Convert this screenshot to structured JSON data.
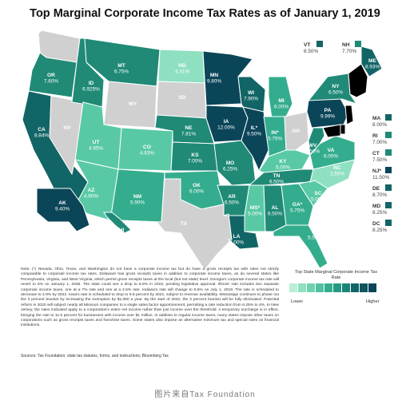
{
  "title": "Top Marginal Corporate Income Tax Rates as of January 1, 2019",
  "colors": {
    "no_tax": "#d0d0d0",
    "ramp": [
      "#8ee0c0",
      "#59c9a5",
      "#34ad8e",
      "#208a77",
      "#126566",
      "#0b4558"
    ]
  },
  "states": [
    {
      "id": "WA",
      "label": "",
      "rate": "",
      "tier": -1
    },
    {
      "id": "OR",
      "label": "OR",
      "rate": "7.60%",
      "tier": 3
    },
    {
      "id": "CA",
      "label": "CA",
      "rate": "8.84%",
      "tier": 4
    },
    {
      "id": "NV",
      "label": "NV",
      "rate": "",
      "tier": -1
    },
    {
      "id": "ID",
      "label": "ID",
      "rate": "6.925%",
      "tier": 3
    },
    {
      "id": "MT",
      "label": "MT",
      "rate": "6.75%",
      "tier": 3
    },
    {
      "id": "WY",
      "label": "WY",
      "rate": "",
      "tier": -1
    },
    {
      "id": "UT",
      "label": "UT",
      "rate": "4.95%",
      "tier": 1
    },
    {
      "id": "AZ",
      "label": "AZ",
      "rate": "4.90%",
      "tier": 1
    },
    {
      "id": "CO",
      "label": "CO",
      "rate": "4.63%",
      "tier": 1
    },
    {
      "id": "NM",
      "label": "NM",
      "rate": "5.90%",
      "tier": 2
    },
    {
      "id": "ND",
      "label": "ND",
      "rate": "4.31%",
      "tier": 0
    },
    {
      "id": "SD",
      "label": "SD",
      "rate": "",
      "tier": -1
    },
    {
      "id": "NE",
      "label": "NE",
      "rate": "7.81%",
      "tier": 3
    },
    {
      "id": "KS",
      "label": "KS",
      "rate": "7.00%",
      "tier": 3
    },
    {
      "id": "OK",
      "label": "OK",
      "rate": "6.00%",
      "tier": 2
    },
    {
      "id": "TX",
      "label": "TX",
      "rate": "",
      "tier": -1
    },
    {
      "id": "MN",
      "label": "MN",
      "rate": "9.80%",
      "tier": 5
    },
    {
      "id": "IA",
      "label": "IA",
      "rate": "12.00%",
      "tier": 5
    },
    {
      "id": "MO",
      "label": "MO",
      "rate": "6.25%",
      "tier": 3
    },
    {
      "id": "AR",
      "label": "AR",
      "rate": "6.50%",
      "tier": 3
    },
    {
      "id": "LA",
      "label": "LA",
      "rate": "8.00%",
      "tier": 4
    },
    {
      "id": "WI",
      "label": "WI",
      "rate": "7.90%",
      "tier": 4
    },
    {
      "id": "IL",
      "label": "IL*",
      "rate": "9.50%",
      "tier": 5
    },
    {
      "id": "MS",
      "label": "MS*",
      "rate": "5.00%",
      "tier": 1
    },
    {
      "id": "MI",
      "label": "MI",
      "rate": "6.00%",
      "tier": 2
    },
    {
      "id": "IN",
      "label": "IN*",
      "rate": "5.75%",
      "tier": 2
    },
    {
      "id": "KY",
      "label": "KY",
      "rate": "5.00%",
      "tier": 1
    },
    {
      "id": "TN",
      "label": "TN",
      "rate": "6.50%",
      "tier": 3
    },
    {
      "id": "AL",
      "label": "AL",
      "rate": "6.50%",
      "tier": 3
    },
    {
      "id": "OH",
      "label": "OH",
      "rate": "",
      "tier": -1
    },
    {
      "id": "GA",
      "label": "GA*",
      "rate": "5.75%",
      "tier": 2
    },
    {
      "id": "FL",
      "label": "FL",
      "rate": "5.50%",
      "tier": 2
    },
    {
      "id": "SC",
      "label": "SC",
      "rate": "5.00%",
      "tier": 1
    },
    {
      "id": "NC",
      "label": "NC",
      "rate": "2.50%",
      "tier": 0
    },
    {
      "id": "VA",
      "label": "VA",
      "rate": "6.00%",
      "tier": 2
    },
    {
      "id": "WV",
      "label": "WV",
      "rate": "6.50%",
      "tier": 3
    },
    {
      "id": "PA",
      "label": "PA",
      "rate": "9.99%",
      "tier": 5
    },
    {
      "id": "NY",
      "label": "NY",
      "rate": "6.50%",
      "tier": 3
    },
    {
      "id": "ME",
      "label": "ME",
      "rate": "8.93%",
      "tier": 4
    },
    {
      "id": "AK",
      "label": "AK",
      "rate": "9.40%",
      "tier": 5
    },
    {
      "id": "HI",
      "label": "HI",
      "rate": "6.40%",
      "tier": 3
    }
  ],
  "side_states": [
    {
      "id": "VT",
      "label": "VT",
      "rate": "8.50%",
      "tier": 4
    },
    {
      "id": "NH",
      "label": "NH",
      "rate": "7.70%",
      "tier": 3
    },
    {
      "id": "MA",
      "label": "MA",
      "rate": "8.00%",
      "tier": 4
    },
    {
      "id": "RI",
      "label": "RI",
      "rate": "7.00%",
      "tier": 3
    },
    {
      "id": "CT",
      "label": "CT",
      "rate": "7.50%",
      "tier": 3
    },
    {
      "id": "NJ",
      "label": "NJ*",
      "rate": "11.50%",
      "tier": 5
    },
    {
      "id": "DE",
      "label": "DE",
      "rate": "8.70%",
      "tier": 4
    },
    {
      "id": "MD",
      "label": "MD",
      "rate": "8.25%",
      "tier": 4
    },
    {
      "id": "DC",
      "label": "DC",
      "rate": "8.25%",
      "tier": 4
    }
  ],
  "notes": "Note: (*) Nevada, Ohio, Texas, and Washington do not have a corporate income tax but do have a gross receipts tax with rates not strictly comparable to corporate income tax rates. Delaware has gross receipts taxes in addition to corporate income taxes, as do several states like Pennsylvania, Virginia, and West Virginia, which permit gross receipts taxes at the local (but not state) level. Georgia's corporate income tax rate will revert to 6% on January 1, 2026. The state could see a drop to 5.5% in 2019, pending legislative approval. Illinois' rate includes two separate corporate income taxes, one at a 7% rate and one at a 2.5% rate. Indiana's rate will change to 5.5% on July 1, 2019. The rate is scheduled to decrease to 4.9% by 2022. Iowa's rate is scheduled to drop to 9.8 percent by 2021, subject to revenue availability. Mississippi continues to phase out the 3 percent bracket by increasing the exemption by $1,000 a year. By the start of 2022, the 3 percent bracket will be fully eliminated. Potential reform in 2020 will subject nearly all Missouri companies to a single sales factor apportionment, permitting a rate reduction from 6.25% to 4%. In New Jersey, the rates indicated apply to a corporation's entire net income rather than just income over the threshold. A temporary surcharge is in effect, bringing the rate to 11.5 percent for businesses with income over $1 million. In addition to regular income taxes, many states impose other taxes on corporations such as gross receipts taxes and franchise taxes. Some states also impose an alternative minimum tax and special rates on financial institutions.",
  "sources": "Sources: Tax Foundation; state tax statutes, forms, and instructions; Bloomberg Tax",
  "legend": {
    "title": "Top State Marginal Corporate Income Tax Rate",
    "low": "Lower",
    "high": "Higher"
  },
  "caption": "图片来自Tax Foundation"
}
